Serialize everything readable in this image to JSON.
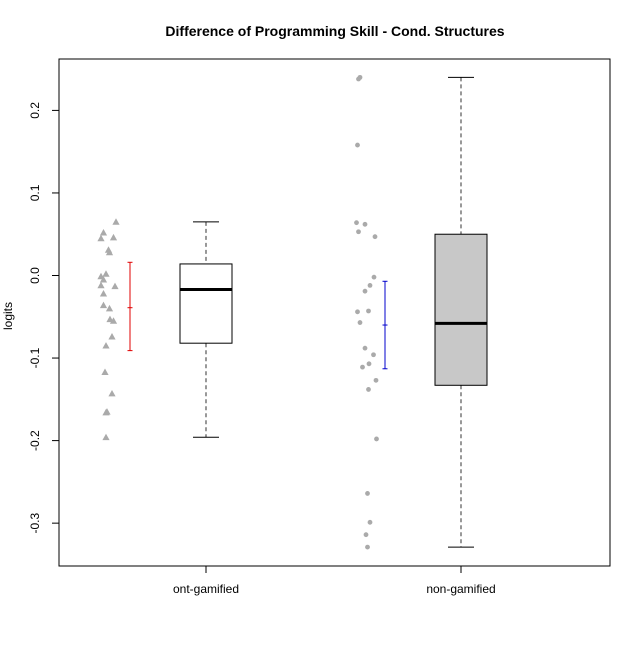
{
  "chart_data": {
    "type": "boxplot",
    "title": "Difference of Programming Skill - Cond. Structures",
    "xlabel": "",
    "ylabel": "logits",
    "ylim": [
      -0.35,
      0.26
    ],
    "y_ticks": [
      -0.3,
      -0.2,
      -0.1,
      0.0,
      0.1,
      0.2
    ],
    "y_tick_labels": [
      "-0.3",
      "-0.2",
      "-0.1",
      "0.0",
      "0.1",
      "0.2"
    ],
    "grid": false,
    "categories": [
      "ont-gamified",
      "non-gamified"
    ],
    "groups": [
      {
        "name": "ont-gamified",
        "box_fill": "#ffffff",
        "point_shape": "triangle",
        "point_color": "#aaaaaa",
        "ci_color": "#e00000",
        "box": {
          "whisker_low": -0.196,
          "q1": -0.082,
          "median": -0.017,
          "q3": 0.014,
          "whisker_high": 0.065
        },
        "ci": {
          "low": -0.091,
          "mean": -0.039,
          "high": 0.016
        },
        "points": [
          {
            "x": 0.3,
            "y": 0.065
          },
          {
            "x": 0.05,
            "y": 0.052
          },
          {
            "x": 0.25,
            "y": 0.046
          },
          {
            "x": 0.0,
            "y": 0.045
          },
          {
            "x": 0.15,
            "y": 0.031
          },
          {
            "x": 0.17,
            "y": 0.028
          },
          {
            "x": 0.0,
            "y": -0.001
          },
          {
            "x": 0.1,
            "y": 0.002
          },
          {
            "x": 0.05,
            "y": -0.005
          },
          {
            "x": 0.0,
            "y": -0.012
          },
          {
            "x": 0.28,
            "y": -0.013
          },
          {
            "x": 0.05,
            "y": -0.022
          },
          {
            "x": 0.05,
            "y": -0.036
          },
          {
            "x": 0.17,
            "y": -0.04
          },
          {
            "x": 0.18,
            "y": -0.053
          },
          {
            "x": 0.25,
            "y": -0.055
          },
          {
            "x": 0.22,
            "y": -0.074
          },
          {
            "x": 0.1,
            "y": -0.085
          },
          {
            "x": 0.08,
            "y": -0.117
          },
          {
            "x": 0.22,
            "y": -0.143
          },
          {
            "x": 0.12,
            "y": -0.165
          },
          {
            "x": 0.1,
            "y": -0.166
          },
          {
            "x": 0.1,
            "y": -0.196
          }
        ]
      },
      {
        "name": "non-gamified",
        "box_fill": "#c8c8c8",
        "point_shape": "circle",
        "point_color": "#aaaaaa",
        "ci_color": "#0000cc",
        "box": {
          "whisker_low": -0.329,
          "q1": -0.133,
          "median": -0.058,
          "q3": 0.05,
          "whisker_high": 0.24
        },
        "ci": {
          "low": -0.113,
          "mean": -0.06,
          "high": -0.007
        },
        "points": [
          {
            "x": 0.1,
            "y": 0.24
          },
          {
            "x": 0.07,
            "y": 0.238
          },
          {
            "x": 0.05,
            "y": 0.158
          },
          {
            "x": 0.03,
            "y": 0.064
          },
          {
            "x": 0.2,
            "y": 0.062
          },
          {
            "x": 0.07,
            "y": 0.053
          },
          {
            "x": 0.4,
            "y": 0.047
          },
          {
            "x": 0.38,
            "y": -0.002
          },
          {
            "x": 0.3,
            "y": -0.012
          },
          {
            "x": 0.2,
            "y": -0.019
          },
          {
            "x": 0.05,
            "y": -0.044
          },
          {
            "x": 0.27,
            "y": -0.043
          },
          {
            "x": 0.1,
            "y": -0.057
          },
          {
            "x": 0.2,
            "y": -0.088
          },
          {
            "x": 0.37,
            "y": -0.096
          },
          {
            "x": 0.28,
            "y": -0.107
          },
          {
            "x": 0.15,
            "y": -0.111
          },
          {
            "x": 0.42,
            "y": -0.127
          },
          {
            "x": 0.27,
            "y": -0.138
          },
          {
            "x": 0.43,
            "y": -0.198
          },
          {
            "x": 0.25,
            "y": -0.264
          },
          {
            "x": 0.3,
            "y": -0.299
          },
          {
            "x": 0.22,
            "y": -0.314
          },
          {
            "x": 0.25,
            "y": -0.329
          }
        ]
      }
    ]
  }
}
